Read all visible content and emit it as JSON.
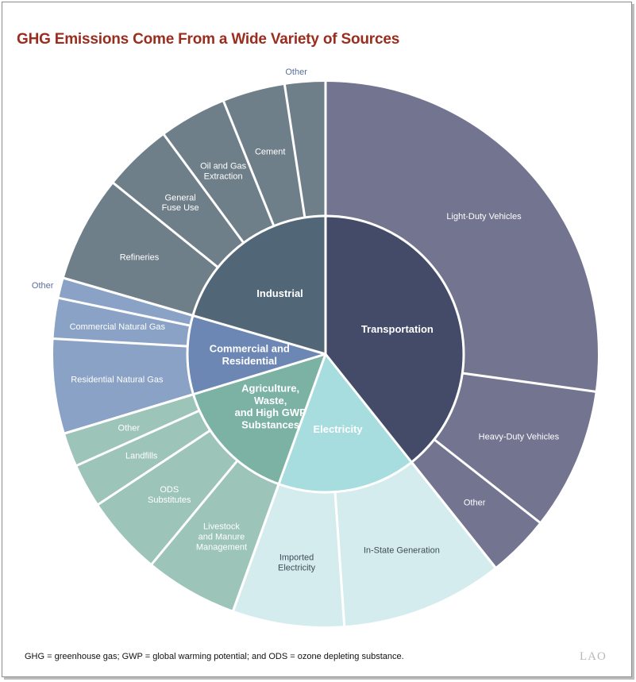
{
  "title": "GHG Emissions Come From a Wide Variety of Sources",
  "footnote": "GHG = greenhouse gas; GWP = global warming potential; and ODS = ozone depleting substance.",
  "logo": "LAO",
  "chart_data": {
    "type": "sunburst",
    "unit": "share of total GHG emissions (%), estimated from slice angles",
    "colors": {
      "transportation_inner": "#434b69",
      "transportation_outer": "#737490",
      "electricity_inner": "#a8dde0",
      "electricity_outer": "#d5ecef",
      "agriculture_inner": "#7bb2a3",
      "agriculture_outer": "#9dc4b9",
      "commercial_inner": "#6d87b4",
      "commercial_outer": "#8aa2c6",
      "industrial_inner": "#516676",
      "industrial_outer": "#6f7f8a",
      "divider": "#ffffff",
      "light_label": "#ffffff",
      "dark_label": "#3d4b56",
      "outside_label": "#5b6f9e"
    },
    "categories": [
      {
        "name": "Transportation",
        "value": 39.3,
        "color": "#434b69",
        "outer_color": "#737490",
        "label_color": "#ffffff",
        "lines": [
          "Transportation"
        ],
        "subcategories": [
          {
            "name": "Light-Duty Vehicles",
            "lines": [
              "Light-Duty Vehicles"
            ],
            "value": 27.2,
            "label_color": "#ffffff"
          },
          {
            "name": "Heavy-Duty Vehicles",
            "lines": [
              "Heavy-Duty Vehicles"
            ],
            "value": 8.4,
            "label_color": "#ffffff"
          },
          {
            "name": "Other",
            "lines": [
              "Other"
            ],
            "value": 3.7,
            "label_color": "#ffffff"
          }
        ]
      },
      {
        "name": "Electricity",
        "value": 16.2,
        "color": "#a8dde0",
        "outer_color": "#d5ecef",
        "label_color": "#ffffff",
        "lines": [
          "Electricity"
        ],
        "subcategories": [
          {
            "name": "In-State Generation",
            "lines": [
              "In-State Generation"
            ],
            "value": 9.6,
            "label_color": "#3d4b56"
          },
          {
            "name": "Imported Electricity",
            "lines": [
              "Imported",
              "Electricity"
            ],
            "value": 6.6,
            "label_color": "#3d4b56"
          }
        ]
      },
      {
        "name": "Agriculture, Waste, and High GWP Substances",
        "value": 14.8,
        "color": "#7bb2a3",
        "outer_color": "#9dc4b9",
        "label_color": "#ffffff",
        "lines": [
          "Agriculture,",
          "Waste,",
          "and High GWP",
          "Substances"
        ],
        "subcategories": [
          {
            "name": "Livestock and Manure Management",
            "lines": [
              "Livestock",
              "and Manure",
              "Management"
            ],
            "value": 5.5,
            "label_color": "#ffffff"
          },
          {
            "name": "ODS Substitutes",
            "lines": [
              "ODS",
              "Substitutes"
            ],
            "value": 4.7,
            "label_color": "#ffffff"
          },
          {
            "name": "Landfills",
            "lines": [
              "Landfills"
            ],
            "value": 2.6,
            "label_color": "#ffffff"
          },
          {
            "name": "Other",
            "lines": [
              "Other"
            ],
            "value": 2.0,
            "label_color": "#ffffff"
          }
        ]
      },
      {
        "name": "Commercial and Residential",
        "value": 9.2,
        "color": "#6d87b4",
        "outer_color": "#8aa2c6",
        "label_color": "#ffffff",
        "lines": [
          "Commercial and",
          "Residential"
        ],
        "subcategories": [
          {
            "name": "Residential Natural Gas",
            "lines": [
              "Residential Natural Gas"
            ],
            "value": 5.6,
            "label_color": "#ffffff"
          },
          {
            "name": "Commercial Natural Gas",
            "lines": [
              "Commercial Natural Gas"
            ],
            "value": 2.4,
            "label_color": "#ffffff"
          },
          {
            "name": "Other",
            "lines": [
              "Other"
            ],
            "value": 1.2,
            "label_color": "#5b6f9e",
            "outside": true
          }
        ]
      },
      {
        "name": "Industrial",
        "value": 20.5,
        "color": "#516676",
        "outer_color": "#6f7f8a",
        "label_color": "#ffffff",
        "lines": [
          "Industrial"
        ],
        "subcategories": [
          {
            "name": "Refineries",
            "lines": [
              "Refineries"
            ],
            "value": 6.3,
            "label_color": "#ffffff"
          },
          {
            "name": "General Fuse Use",
            "lines": [
              "General",
              "Fuse Use"
            ],
            "value": 4.1,
            "label_color": "#ffffff"
          },
          {
            "name": "Oil and Gas Extraction",
            "lines": [
              "Oil and Gas",
              "Extraction"
            ],
            "value": 4.0,
            "label_color": "#ffffff"
          },
          {
            "name": "Cement",
            "lines": [
              "Cement"
            ],
            "value": 3.7,
            "label_color": "#ffffff"
          },
          {
            "name": "Other",
            "lines": [
              "Other"
            ],
            "value": 2.4,
            "label_color": "#5b6f9e",
            "outside": true
          }
        ]
      }
    ]
  }
}
